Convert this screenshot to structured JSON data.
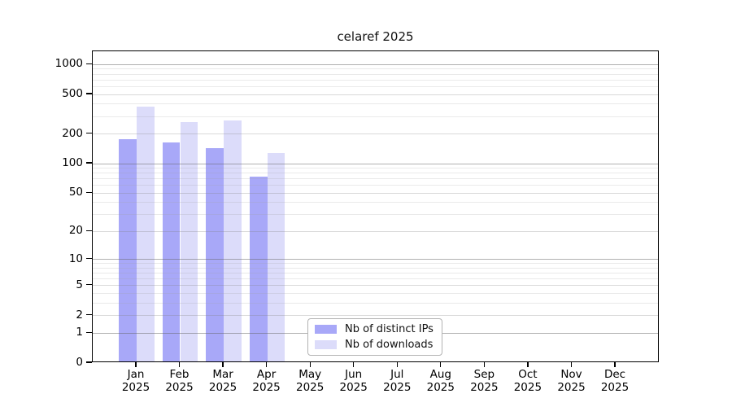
{
  "chart_data": {
    "type": "bar",
    "title": "celaref 2025",
    "months": [
      "Jan",
      "Feb",
      "Mar",
      "Apr",
      "May",
      "Jun",
      "Jul",
      "Aug",
      "Sep",
      "Oct",
      "Nov",
      "Dec"
    ],
    "year": "2025",
    "yticks": [
      0,
      1,
      2,
      5,
      10,
      20,
      50,
      100,
      200,
      500,
      1000
    ],
    "scale": "log10(1+y)",
    "ylim": [
      0,
      1360
    ],
    "grid": {
      "major_values": [
        1,
        10,
        100,
        1000
      ],
      "labeled_values": [
        2,
        5,
        20,
        50,
        200,
        500
      ],
      "minor_values": [
        3,
        4,
        6,
        7,
        8,
        9,
        30,
        40,
        60,
        70,
        80,
        90,
        300,
        400,
        600,
        700,
        800,
        900
      ],
      "major_color": "rgba(100,100,100,0.50)",
      "labeled_color": "rgba(130,130,130,0.30)",
      "minor_color": "rgba(160,160,160,0.22)"
    },
    "series": [
      {
        "name": "Nb of distinct IPs",
        "color": "#a8a8f8",
        "values": [
          172,
          157,
          138,
          71,
          0,
          0,
          0,
          0,
          0,
          0,
          0,
          0
        ]
      },
      {
        "name": "Nb of downloads",
        "color": "#dcdcfa",
        "values": [
          363,
          255,
          265,
          123,
          0,
          0,
          0,
          0,
          0,
          0,
          0,
          0
        ]
      }
    ],
    "legend_position": "bottom-center"
  }
}
